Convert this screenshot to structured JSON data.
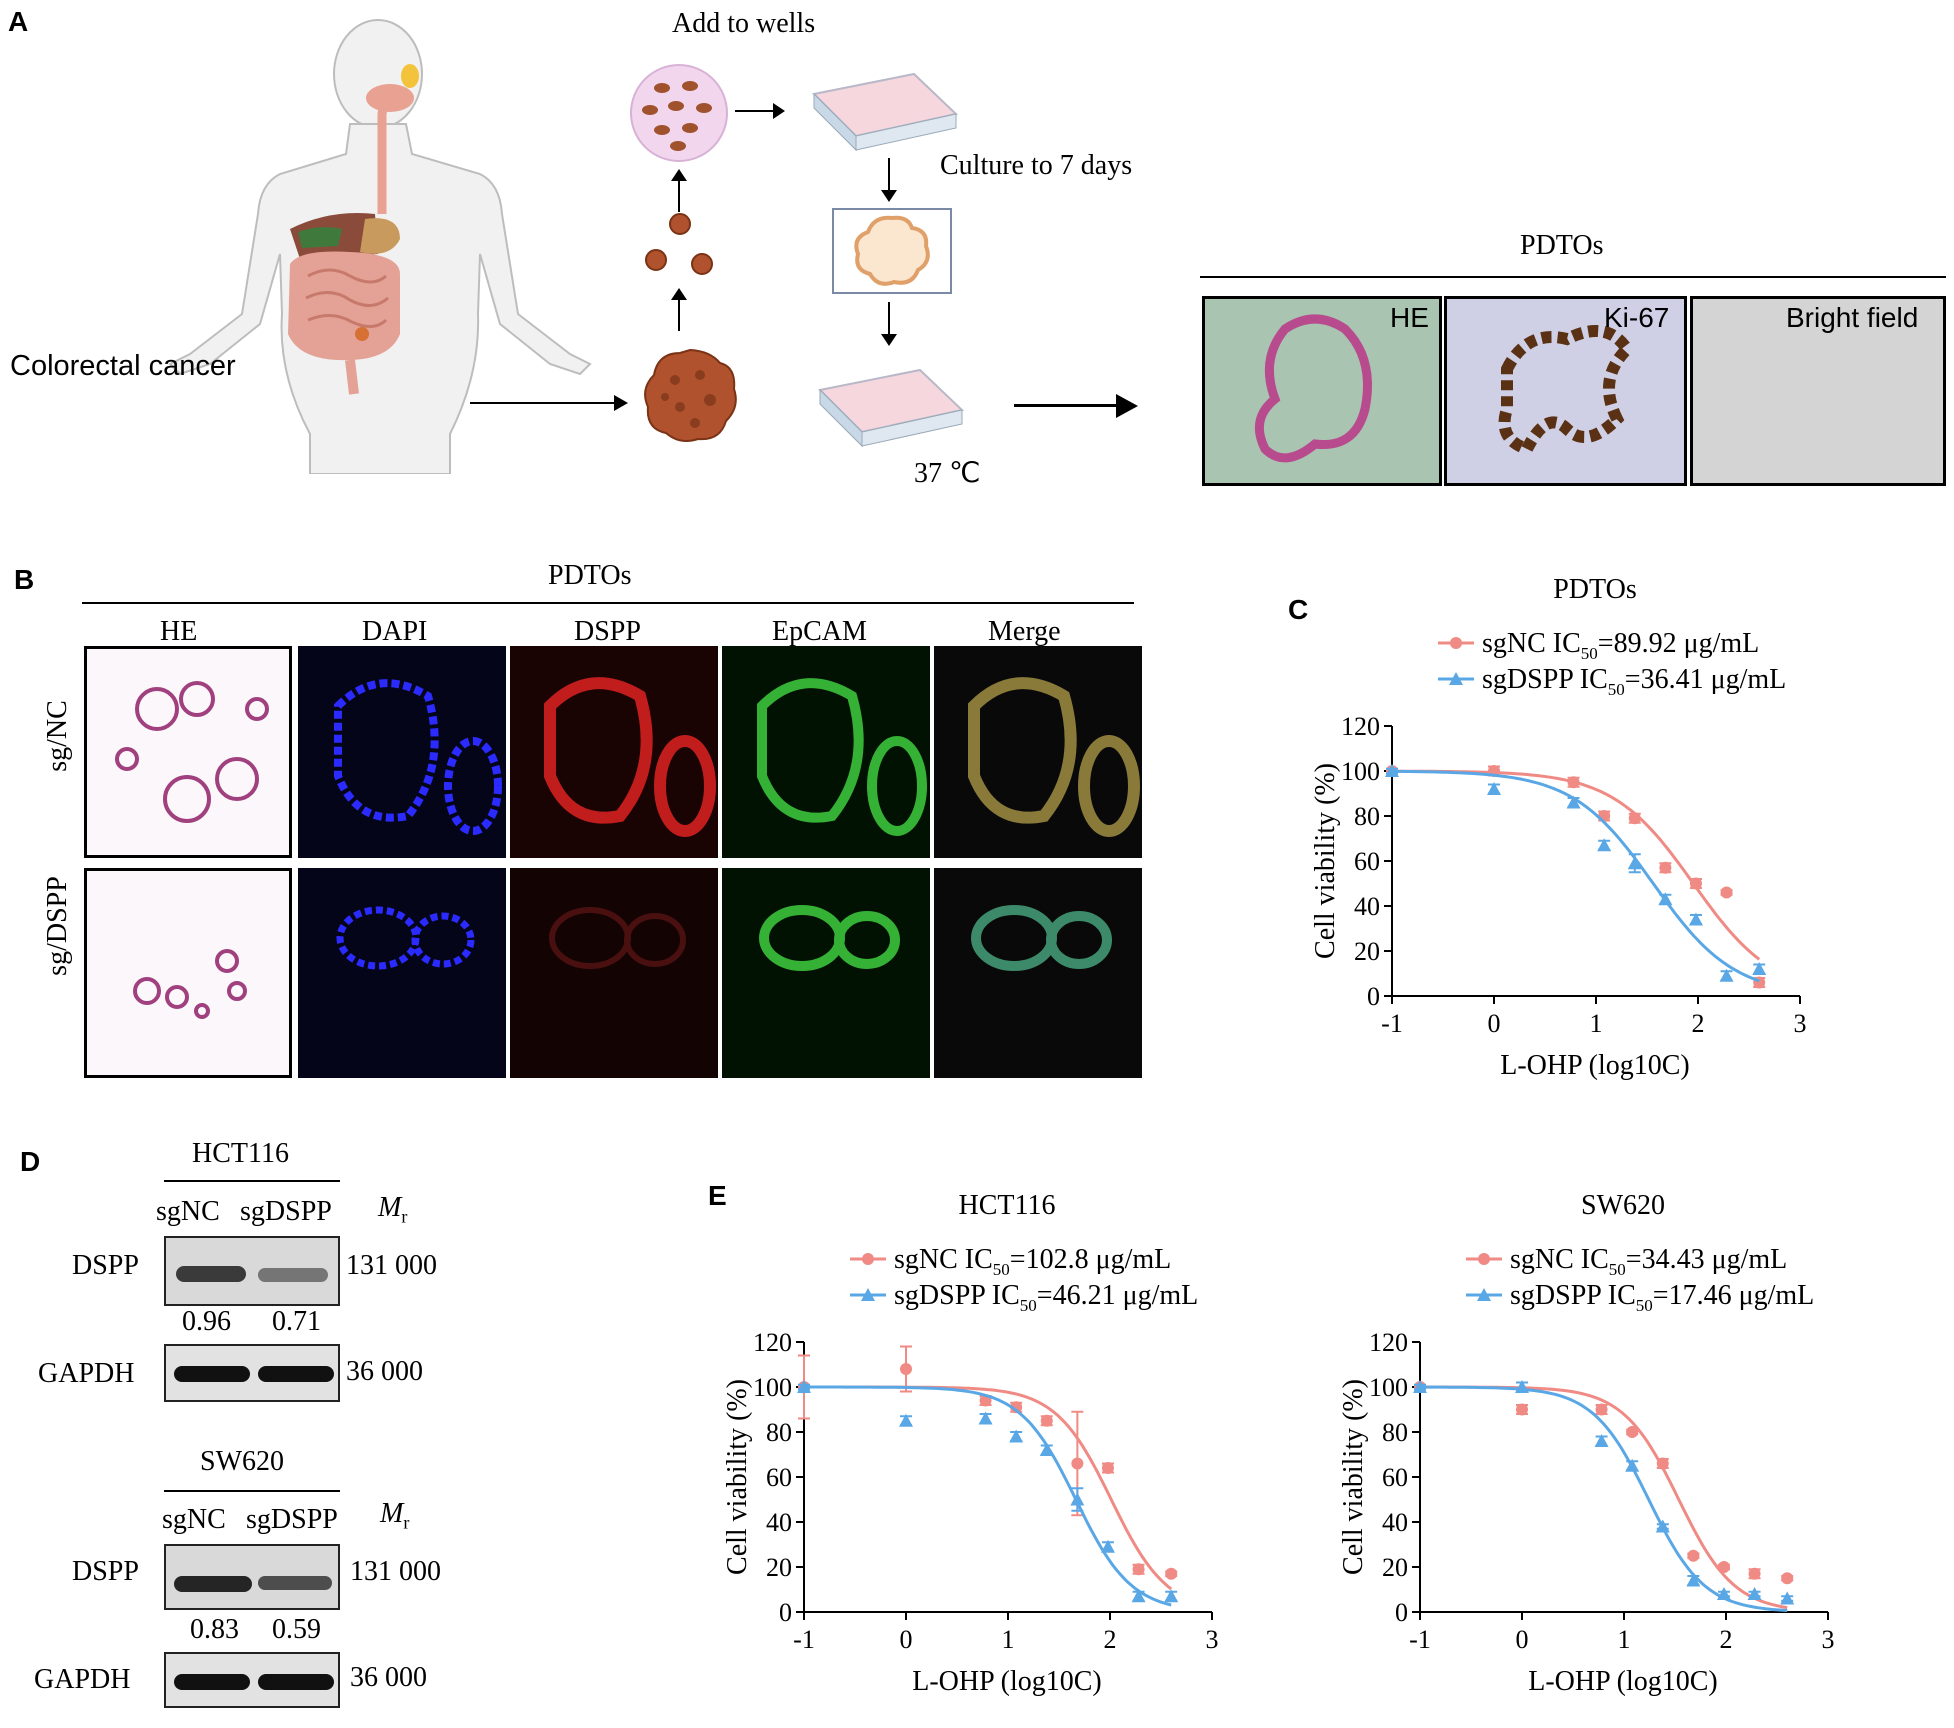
{
  "panels": {
    "a": "A",
    "b": "B",
    "c": "C",
    "d": "D",
    "e": "E"
  },
  "a": {
    "colorectal": "Colorectal cancer",
    "add_wells": "Add to wells",
    "culture": "Culture to 7 days",
    "temp": "37 ℃",
    "pdtos": "PDTOs",
    "img_labels": [
      "HE",
      "Ki-67",
      "Bright field"
    ]
  },
  "b": {
    "title": "PDTOs",
    "cols": [
      "HE",
      "DAPI",
      "DSPP",
      "EpCAM",
      "Merge"
    ],
    "rows": [
      "sg/NC",
      "sg/DSPP"
    ]
  },
  "d": {
    "groups": [
      {
        "cell": "HCT116",
        "lanes": [
          "sgNC",
          "sgDSPP"
        ],
        "mr": "M",
        "mr_sub": "r",
        "dspp": "DSPP",
        "gapdh": "GAPDH",
        "dspp_mw": "131 000",
        "gapdh_mw": "36 000",
        "ratios": [
          "0.96",
          "0.71"
        ]
      },
      {
        "cell": "SW620",
        "lanes": [
          "sgNC",
          "sgDSPP"
        ],
        "mr": "M",
        "mr_sub": "r",
        "dspp": "DSPP",
        "gapdh": "GAPDH",
        "dspp_mw": "131 000",
        "gapdh_mw": "36 000",
        "ratios": [
          "0.83",
          "0.59"
        ]
      }
    ]
  },
  "colors": {
    "sgNC": "#f08a84",
    "sgDSPP": "#5aa7e6",
    "bar": "#000000"
  },
  "chart_data": [
    {
      "id": "C",
      "type": "scatter",
      "title": "PDTOs",
      "xlabel": "L-OHP (log10C)",
      "ylabel": "Cell viability (%)",
      "xlim": [
        -1,
        3
      ],
      "ylim": [
        0,
        120
      ],
      "xticks": [
        "-1",
        "0",
        "1",
        "2",
        "3"
      ],
      "yticks": [
        "0",
        "20",
        "40",
        "60",
        "80",
        "100",
        "120"
      ],
      "series": [
        {
          "name": "sgNC",
          "ic50_label": "IC",
          "ic50_sub": "50",
          "ic50_value": "=89.92 μg/mL",
          "x": [
            -1,
            0,
            0.78,
            1.08,
            1.38,
            1.68,
            1.98,
            2.28,
            2.6
          ],
          "y": [
            100,
            100,
            95,
            80,
            79,
            57,
            50,
            46,
            6
          ],
          "err": [
            1,
            2,
            2,
            2,
            2,
            2,
            2,
            1,
            2
          ],
          "ic50": 1.954,
          "hill": 1.1
        },
        {
          "name": "sgDSPP",
          "ic50_label": "IC",
          "ic50_sub": "50",
          "ic50_value": "=36.41 μg/mL",
          "x": [
            -1,
            0,
            0.78,
            1.08,
            1.38,
            1.68,
            1.98,
            2.28,
            2.6
          ],
          "y": [
            100,
            92,
            86,
            67,
            59,
            43,
            34,
            9,
            12
          ],
          "err": [
            1,
            2,
            2,
            2,
            4,
            2,
            2,
            2,
            2
          ],
          "ic50": 1.561,
          "hill": 1.1
        }
      ]
    },
    {
      "id": "E1",
      "type": "scatter",
      "title": "HCT116",
      "xlabel": "L-OHP (log10C)",
      "ylabel": "Cell viability (%)",
      "xlim": [
        -1,
        3
      ],
      "ylim": [
        0,
        120
      ],
      "xticks": [
        "-1",
        "0",
        "1",
        "2",
        "3"
      ],
      "yticks": [
        "0",
        "20",
        "40",
        "60",
        "80",
        "100",
        "120"
      ],
      "series": [
        {
          "name": "sgNC",
          "ic50_label": "IC",
          "ic50_sub": "50",
          "ic50_value": "=102.8 μg/mL",
          "x": [
            -1,
            0,
            0.78,
            1.08,
            1.38,
            1.68,
            1.98,
            2.28,
            2.6
          ],
          "y": [
            100,
            108,
            94,
            91,
            85,
            66,
            64,
            19,
            17
          ],
          "err": [
            14,
            10,
            2,
            2,
            2,
            23,
            2,
            2,
            1
          ],
          "ic50": 2.012,
          "hill": 1.6
        },
        {
          "name": "sgDSPP",
          "ic50_label": "IC",
          "ic50_sub": "50",
          "ic50_value": "=46.21 μg/mL",
          "x": [
            -1,
            0,
            0.78,
            1.08,
            1.38,
            1.68,
            1.98,
            2.28,
            2.6
          ],
          "y": [
            100,
            85,
            86,
            78,
            72,
            50,
            29,
            7,
            7
          ],
          "err": [
            1,
            2,
            2,
            2,
            2,
            5,
            2,
            2,
            2
          ],
          "ic50": 1.665,
          "hill": 1.6
        }
      ]
    },
    {
      "id": "E2",
      "type": "scatter",
      "title": "SW620",
      "xlabel": "L-OHP (log10C)",
      "ylabel": "Cell viability (%)",
      "xlim": [
        -1,
        3
      ],
      "ylim": [
        0,
        120
      ],
      "xticks": [
        "-1",
        "0",
        "1",
        "2",
        "3"
      ],
      "yticks": [
        "0",
        "20",
        "40",
        "60",
        "80",
        "100",
        "120"
      ],
      "series": [
        {
          "name": "sgNC",
          "ic50_label": "IC",
          "ic50_sub": "50",
          "ic50_value": "=34.43 μg/mL",
          "x": [
            -1,
            0,
            0.78,
            1.08,
            1.38,
            1.68,
            1.98,
            2.28,
            2.6
          ],
          "y": [
            100,
            90,
            90,
            80,
            66,
            25,
            20,
            17,
            15
          ],
          "err": [
            1,
            2,
            2,
            1,
            2,
            1,
            1,
            2,
            1
          ],
          "ic50": 1.537,
          "hill": 1.6
        },
        {
          "name": "sgDSPP",
          "ic50_label": "IC",
          "ic50_sub": "50",
          "ic50_value": "=17.46 μg/mL",
          "x": [
            -1,
            0,
            0.78,
            1.08,
            1.38,
            1.68,
            1.98,
            2.28,
            2.6
          ],
          "y": [
            100,
            100,
            76,
            65,
            38,
            14,
            8,
            8,
            6
          ],
          "err": [
            1,
            2,
            2,
            2,
            1,
            2,
            1,
            1,
            1
          ],
          "ic50": 1.242,
          "hill": 1.6
        }
      ]
    }
  ]
}
